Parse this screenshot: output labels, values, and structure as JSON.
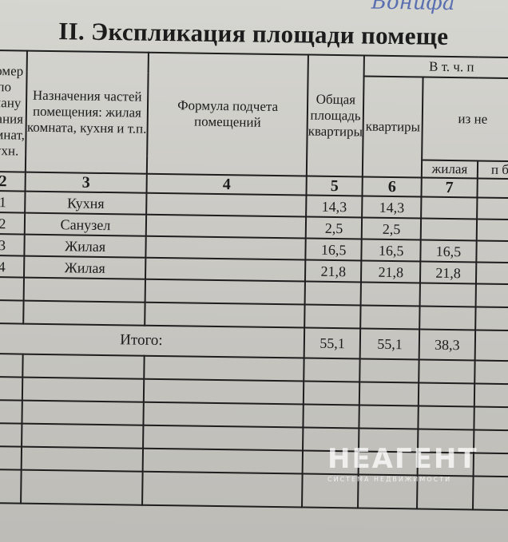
{
  "handwriting": "Бонифа",
  "title": "II. Экспликация площади помеще",
  "headers": {
    "c2": "Номер по плану здания комнат, кухн.",
    "c3": "Назначения частей помещения: жилая комната, кухня и т.п.",
    "c4": "Формула подчета помещений",
    "c5": "Общая площадь квартиры",
    "group": "В т. ч. п",
    "subgroup": "из не",
    "c6": "квартиры",
    "c7": "жилая",
    "c8": "п б"
  },
  "col_numbers": [
    "2",
    "3",
    "4",
    "5",
    "6",
    "7",
    ""
  ],
  "rows": [
    {
      "no": "1",
      "name": "Кухня",
      "total": "14,3",
      "apt": "14,3",
      "living": ""
    },
    {
      "no": "2",
      "name": "Санузел",
      "total": "2,5",
      "apt": "2,5",
      "living": ""
    },
    {
      "no": "3",
      "name": "Жилая",
      "total": "16,5",
      "apt": "16,5",
      "living": "16,5"
    },
    {
      "no": "4",
      "name": "Жилая",
      "total": "21,8",
      "apt": "21,8",
      "living": "21,8"
    }
  ],
  "total": {
    "label": "Итого:",
    "total": "55,1",
    "apt": "55,1",
    "living": "38,3"
  },
  "watermark": {
    "brand": "НЕАГЕНТ",
    "tagline": "СИСТЕМА НЕДВИЖИМОСТИ"
  }
}
